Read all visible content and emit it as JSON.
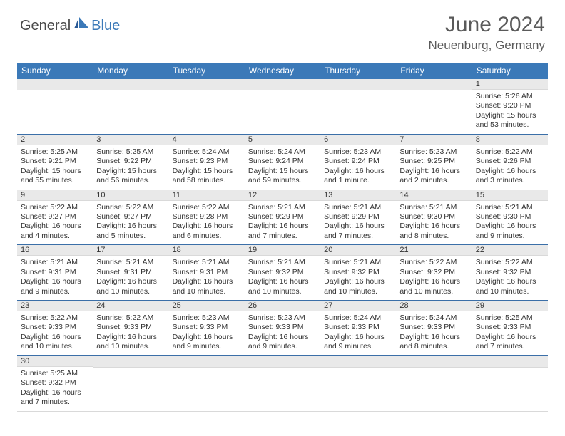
{
  "brand": {
    "part1": "General",
    "part2": "Blue"
  },
  "title": "June 2024",
  "location": "Neuenburg, Germany",
  "colors": {
    "header_bg": "#3b79b8",
    "header_text": "#ffffff",
    "daynum_bg": "#e9e9e9",
    "rule": "#3b6fa8",
    "body_text": "#333333"
  },
  "daysOfWeek": [
    "Sunday",
    "Monday",
    "Tuesday",
    "Wednesday",
    "Thursday",
    "Friday",
    "Saturday"
  ],
  "weeks": [
    [
      null,
      null,
      null,
      null,
      null,
      null,
      {
        "n": "1",
        "sr": "Sunrise: 5:26 AM",
        "ss": "Sunset: 9:20 PM",
        "dl": "Daylight: 15 hours and 53 minutes."
      }
    ],
    [
      {
        "n": "2",
        "sr": "Sunrise: 5:25 AM",
        "ss": "Sunset: 9:21 PM",
        "dl": "Daylight: 15 hours and 55 minutes."
      },
      {
        "n": "3",
        "sr": "Sunrise: 5:25 AM",
        "ss": "Sunset: 9:22 PM",
        "dl": "Daylight: 15 hours and 56 minutes."
      },
      {
        "n": "4",
        "sr": "Sunrise: 5:24 AM",
        "ss": "Sunset: 9:23 PM",
        "dl": "Daylight: 15 hours and 58 minutes."
      },
      {
        "n": "5",
        "sr": "Sunrise: 5:24 AM",
        "ss": "Sunset: 9:24 PM",
        "dl": "Daylight: 15 hours and 59 minutes."
      },
      {
        "n": "6",
        "sr": "Sunrise: 5:23 AM",
        "ss": "Sunset: 9:24 PM",
        "dl": "Daylight: 16 hours and 1 minute."
      },
      {
        "n": "7",
        "sr": "Sunrise: 5:23 AM",
        "ss": "Sunset: 9:25 PM",
        "dl": "Daylight: 16 hours and 2 minutes."
      },
      {
        "n": "8",
        "sr": "Sunrise: 5:22 AM",
        "ss": "Sunset: 9:26 PM",
        "dl": "Daylight: 16 hours and 3 minutes."
      }
    ],
    [
      {
        "n": "9",
        "sr": "Sunrise: 5:22 AM",
        "ss": "Sunset: 9:27 PM",
        "dl": "Daylight: 16 hours and 4 minutes."
      },
      {
        "n": "10",
        "sr": "Sunrise: 5:22 AM",
        "ss": "Sunset: 9:27 PM",
        "dl": "Daylight: 16 hours and 5 minutes."
      },
      {
        "n": "11",
        "sr": "Sunrise: 5:22 AM",
        "ss": "Sunset: 9:28 PM",
        "dl": "Daylight: 16 hours and 6 minutes."
      },
      {
        "n": "12",
        "sr": "Sunrise: 5:21 AM",
        "ss": "Sunset: 9:29 PM",
        "dl": "Daylight: 16 hours and 7 minutes."
      },
      {
        "n": "13",
        "sr": "Sunrise: 5:21 AM",
        "ss": "Sunset: 9:29 PM",
        "dl": "Daylight: 16 hours and 7 minutes."
      },
      {
        "n": "14",
        "sr": "Sunrise: 5:21 AM",
        "ss": "Sunset: 9:30 PM",
        "dl": "Daylight: 16 hours and 8 minutes."
      },
      {
        "n": "15",
        "sr": "Sunrise: 5:21 AM",
        "ss": "Sunset: 9:30 PM",
        "dl": "Daylight: 16 hours and 9 minutes."
      }
    ],
    [
      {
        "n": "16",
        "sr": "Sunrise: 5:21 AM",
        "ss": "Sunset: 9:31 PM",
        "dl": "Daylight: 16 hours and 9 minutes."
      },
      {
        "n": "17",
        "sr": "Sunrise: 5:21 AM",
        "ss": "Sunset: 9:31 PM",
        "dl": "Daylight: 16 hours and 10 minutes."
      },
      {
        "n": "18",
        "sr": "Sunrise: 5:21 AM",
        "ss": "Sunset: 9:31 PM",
        "dl": "Daylight: 16 hours and 10 minutes."
      },
      {
        "n": "19",
        "sr": "Sunrise: 5:21 AM",
        "ss": "Sunset: 9:32 PM",
        "dl": "Daylight: 16 hours and 10 minutes."
      },
      {
        "n": "20",
        "sr": "Sunrise: 5:21 AM",
        "ss": "Sunset: 9:32 PM",
        "dl": "Daylight: 16 hours and 10 minutes."
      },
      {
        "n": "21",
        "sr": "Sunrise: 5:22 AM",
        "ss": "Sunset: 9:32 PM",
        "dl": "Daylight: 16 hours and 10 minutes."
      },
      {
        "n": "22",
        "sr": "Sunrise: 5:22 AM",
        "ss": "Sunset: 9:32 PM",
        "dl": "Daylight: 16 hours and 10 minutes."
      }
    ],
    [
      {
        "n": "23",
        "sr": "Sunrise: 5:22 AM",
        "ss": "Sunset: 9:33 PM",
        "dl": "Daylight: 16 hours and 10 minutes."
      },
      {
        "n": "24",
        "sr": "Sunrise: 5:22 AM",
        "ss": "Sunset: 9:33 PM",
        "dl": "Daylight: 16 hours and 10 minutes."
      },
      {
        "n": "25",
        "sr": "Sunrise: 5:23 AM",
        "ss": "Sunset: 9:33 PM",
        "dl": "Daylight: 16 hours and 9 minutes."
      },
      {
        "n": "26",
        "sr": "Sunrise: 5:23 AM",
        "ss": "Sunset: 9:33 PM",
        "dl": "Daylight: 16 hours and 9 minutes."
      },
      {
        "n": "27",
        "sr": "Sunrise: 5:24 AM",
        "ss": "Sunset: 9:33 PM",
        "dl": "Daylight: 16 hours and 9 minutes."
      },
      {
        "n": "28",
        "sr": "Sunrise: 5:24 AM",
        "ss": "Sunset: 9:33 PM",
        "dl": "Daylight: 16 hours and 8 minutes."
      },
      {
        "n": "29",
        "sr": "Sunrise: 5:25 AM",
        "ss": "Sunset: 9:33 PM",
        "dl": "Daylight: 16 hours and 7 minutes."
      }
    ],
    [
      {
        "n": "30",
        "sr": "Sunrise: 5:25 AM",
        "ss": "Sunset: 9:32 PM",
        "dl": "Daylight: 16 hours and 7 minutes."
      },
      null,
      null,
      null,
      null,
      null,
      null
    ]
  ]
}
